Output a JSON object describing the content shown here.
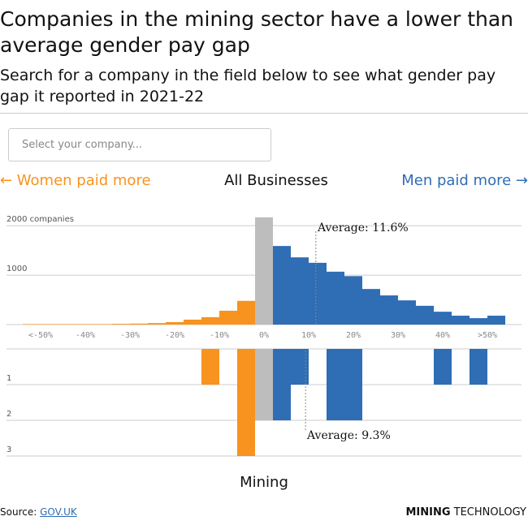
{
  "header": {
    "title": "Companies in the mining sector have a lower than average gender pay gap",
    "subtitle": "Search for a company in the field below to see what gender pay gap it reported in 2021-22",
    "search_placeholder": "Select your company...",
    "left_label": "← Women paid more",
    "right_label": "Men paid more →"
  },
  "chart_data": [
    {
      "type": "histogram",
      "title": "All Businesses",
      "bins": [
        -54,
        -50,
        -46,
        -42,
        -38,
        -34,
        -30,
        -26,
        -22,
        -18,
        -14,
        -10,
        -6,
        -2,
        2,
        6,
        10,
        14,
        18,
        22,
        26,
        30,
        34,
        38,
        42,
        46,
        50,
        54
      ],
      "series": [
        {
          "color": "#f7931e",
          "values": [
            10,
            10,
            10,
            10,
            10,
            15,
            20,
            30,
            50,
            100,
            150,
            280,
            480,
            null,
            null,
            null,
            null,
            null,
            null,
            null,
            null,
            null,
            null,
            null,
            null,
            null,
            null
          ]
        },
        {
          "color": "#bdbdbd",
          "values": [
            null,
            null,
            null,
            null,
            null,
            null,
            null,
            null,
            null,
            null,
            null,
            null,
            null,
            2170,
            null,
            null,
            null,
            null,
            null,
            null,
            null,
            null,
            null,
            null,
            null,
            null,
            null
          ]
        },
        {
          "color": "#2f6db5",
          "values": [
            null,
            null,
            null,
            null,
            null,
            null,
            null,
            null,
            null,
            null,
            null,
            null,
            null,
            null,
            1590,
            1360,
            1250,
            1070,
            980,
            720,
            590,
            490,
            380,
            260,
            180,
            130,
            180
          ]
        }
      ],
      "xlim": [
        -54,
        54
      ],
      "xticks": [
        {
          "value": -50,
          "label": "<-50%"
        },
        {
          "value": -40,
          "label": "-40%"
        },
        {
          "value": -30,
          "label": "-30%"
        },
        {
          "value": -20,
          "label": "-20%"
        },
        {
          "value": -10,
          "label": "-10%"
        },
        {
          "value": 0,
          "label": "0%"
        },
        {
          "value": 10,
          "label": "10%"
        },
        {
          "value": 20,
          "label": "20%"
        },
        {
          "value": 30,
          "label": "30%"
        },
        {
          "value": 40,
          "label": "40%"
        },
        {
          "value": 50,
          "label": ">50%"
        }
      ],
      "ylim": [
        0,
        2200
      ],
      "yticks": [
        1000,
        {
          "value": 2000,
          "label": "2000 companies"
        }
      ],
      "average": 11.6,
      "annotation": "Average: 11.6%"
    },
    {
      "type": "histogram",
      "title": "Mining",
      "bins": [
        -54,
        -50,
        -46,
        -42,
        -38,
        -34,
        -30,
        -26,
        -22,
        -18,
        -14,
        -10,
        -6,
        -2,
        2,
        6,
        10,
        14,
        18,
        22,
        26,
        30,
        34,
        38,
        42,
        46,
        50,
        54
      ],
      "series": [
        {
          "color": "#f7931e",
          "values": [
            0,
            0,
            0,
            0,
            0,
            0,
            0,
            0,
            0,
            0,
            1,
            0,
            3,
            null,
            null,
            null,
            null,
            null,
            null,
            null,
            null,
            null,
            null,
            null,
            null,
            null,
            null
          ]
        },
        {
          "color": "#bdbdbd",
          "values": [
            null,
            null,
            null,
            null,
            null,
            null,
            null,
            null,
            null,
            null,
            null,
            null,
            null,
            2,
            null,
            null,
            null,
            null,
            null,
            null,
            null,
            null,
            null,
            null,
            null,
            null,
            null
          ]
        },
        {
          "color": "#2f6db5",
          "values": [
            null,
            null,
            null,
            null,
            null,
            null,
            null,
            null,
            null,
            null,
            null,
            null,
            null,
            null,
            2,
            1,
            0,
            2,
            2,
            0,
            0,
            0,
            0,
            1,
            0,
            1,
            0
          ]
        }
      ],
      "xlim": [
        -54,
        54
      ],
      "ylim": [
        0,
        3
      ],
      "yticks": [
        1,
        2,
        3
      ],
      "average": 9.3,
      "annotation": "Average: 9.3%"
    }
  ],
  "footer": {
    "source_label": "Source:",
    "source_link": "GOV.UK",
    "logo_bold": "MINING",
    "logo_light": "TECHNOLOGY"
  }
}
